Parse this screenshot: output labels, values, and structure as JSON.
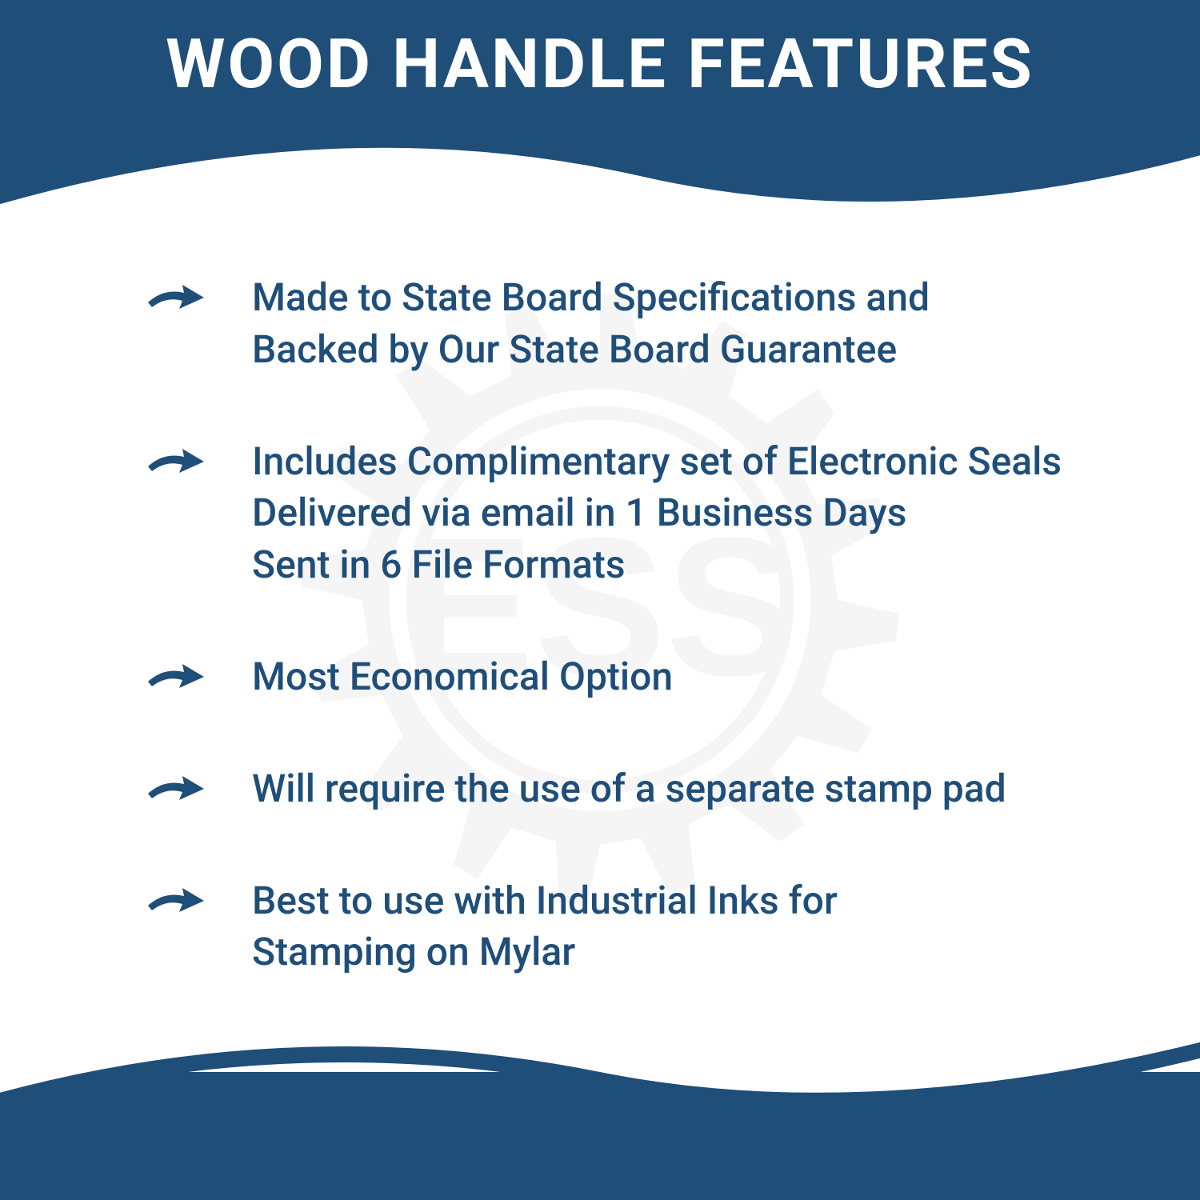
{
  "title": "WOOD HANDLE FEATURES",
  "colors": {
    "primary": "#1f4e79",
    "background": "#ffffff",
    "watermark": "#cccccc"
  },
  "watermark_text": "ESS",
  "features": [
    {
      "lines": [
        "Made to State Board Specifications and",
        "Backed by Our State Board Guarantee"
      ]
    },
    {
      "lines": [
        "Includes Complimentary set of Electronic Seals",
        "Delivered via email in 1 Business Days",
        "Sent in 6 File Formats"
      ]
    },
    {
      "lines": [
        "Most Economical Option"
      ]
    },
    {
      "lines": [
        "Will require the use of a separate stamp pad"
      ]
    },
    {
      "lines": [
        "Best to use with Industrial Inks for",
        "Stamping on Mylar"
      ]
    }
  ],
  "typography": {
    "title_fontsize": 85,
    "title_weight": 700,
    "body_fontsize": 48,
    "body_weight": 500
  }
}
